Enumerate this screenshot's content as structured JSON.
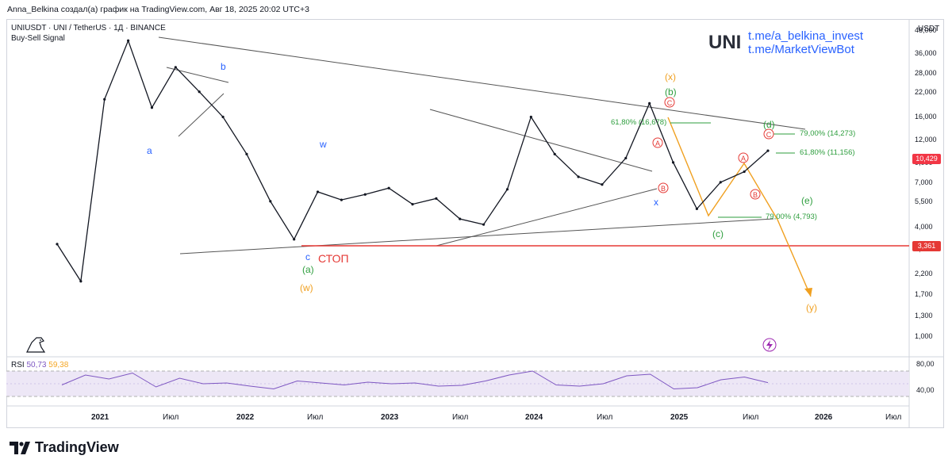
{
  "header": {
    "caption": "Anna_Belkina создал(а) график на TradingView.com, Авг 18, 2025 20:02 UTC+3"
  },
  "legend": {
    "symbol_line": "UNIUSDT · UNI / TetherUS · 1Д · BINANCE",
    "indicator": "Buy-Sell Signal"
  },
  "watermark": {
    "symbol": "UNI",
    "link1": "t.me/a_belkina_invest",
    "link2": "t.me/MarketViewBot"
  },
  "price_axis": {
    "currency": "USDT",
    "ticks": [
      "48,000",
      "36,000",
      "28,000",
      "22,000",
      "16,000",
      "12,000",
      "9,000",
      "7,000",
      "5,500",
      "4,000",
      "3,000",
      "2,200",
      "1,700",
      "1,300",
      "1,000"
    ],
    "current_price": "10,429",
    "stop_price": "3,361"
  },
  "rsi": {
    "label": "RSI",
    "value1": "50,73",
    "value2": "59,38",
    "ticks": [
      "80,00",
      "40,00"
    ]
  },
  "time_axis": {
    "labels": [
      "2021",
      "Июл",
      "2022",
      "Июл",
      "2023",
      "Июл",
      "2024",
      "Июл",
      "2025",
      "Июл",
      "2026",
      "Июл"
    ]
  },
  "annotations": {
    "wave_a": "a",
    "wave_b": "b",
    "wave_c": "c",
    "wave_w": "w",
    "wave_x": "x",
    "wave_paren_a": "(a)",
    "wave_paren_w": "(w)",
    "wave_paren_x": "(x)",
    "wave_paren_b": "(b)",
    "wave_paren_c": "(c)",
    "wave_paren_d": "(d)",
    "wave_paren_e": "(e)",
    "wave_paren_y": "(y)",
    "stop": "СТОП",
    "fib1": "61,80% (16,678)",
    "fib2": "79,00% (14,273)",
    "fib3": "61,80% (11,156)",
    "fib4": "79,00% (4,793)",
    "circle_a": "A",
    "circle_b": "B",
    "circle_c": "C"
  },
  "brand": {
    "logo": "TradingView"
  },
  "colors": {
    "stop_line": "#e53935",
    "current_price_bg": "#f23645",
    "fib": "#2e9e3e",
    "orange": "#f0a020",
    "blue_label": "#2962ff",
    "rsi_line": "#7e57c2",
    "rsi_ma": "#f5a623"
  },
  "chart_data": {
    "type": "line",
    "title": "UNIUSDT · UNI / TetherUS · 1Д · BINANCE",
    "y_scale": "log",
    "ylim": [
      0.85,
      52
    ],
    "x": [
      "2020-11",
      "2021-01",
      "2021-03",
      "2021-05",
      "2021-07",
      "2021-09",
      "2021-11",
      "2022-01",
      "2022-03",
      "2022-05",
      "2022-07",
      "2022-09",
      "2022-11",
      "2023-01",
      "2023-03",
      "2023-05",
      "2023-07",
      "2023-09",
      "2023-11",
      "2024-01",
      "2024-03",
      "2024-05",
      "2024-07",
      "2024-09",
      "2024-11",
      "2024-12",
      "2025-02",
      "2025-04",
      "2025-06",
      "2025-07",
      "2025-08"
    ],
    "series": [
      {
        "values": [
          3.2,
          2.0,
          20.0,
          42.0,
          18.0,
          30.0,
          22.0,
          16.0,
          10.0,
          5.5,
          3.4,
          6.2,
          5.6,
          6.0,
          6.5,
          5.3,
          5.7,
          4.4,
          4.1,
          6.4,
          16.0,
          10.0,
          7.5,
          6.8,
          9.5,
          19.0,
          9.0,
          5.0,
          7.0,
          8.0,
          10.429
        ]
      }
    ],
    "rsi_values": [
      45,
      70,
      60,
      75,
      40,
      62,
      48,
      50,
      42,
      35,
      55,
      50,
      45,
      52,
      48,
      50,
      42,
      44,
      55,
      70,
      80,
      45,
      42,
      48,
      68,
      72,
      35,
      38,
      58,
      65,
      50.73
    ]
  }
}
